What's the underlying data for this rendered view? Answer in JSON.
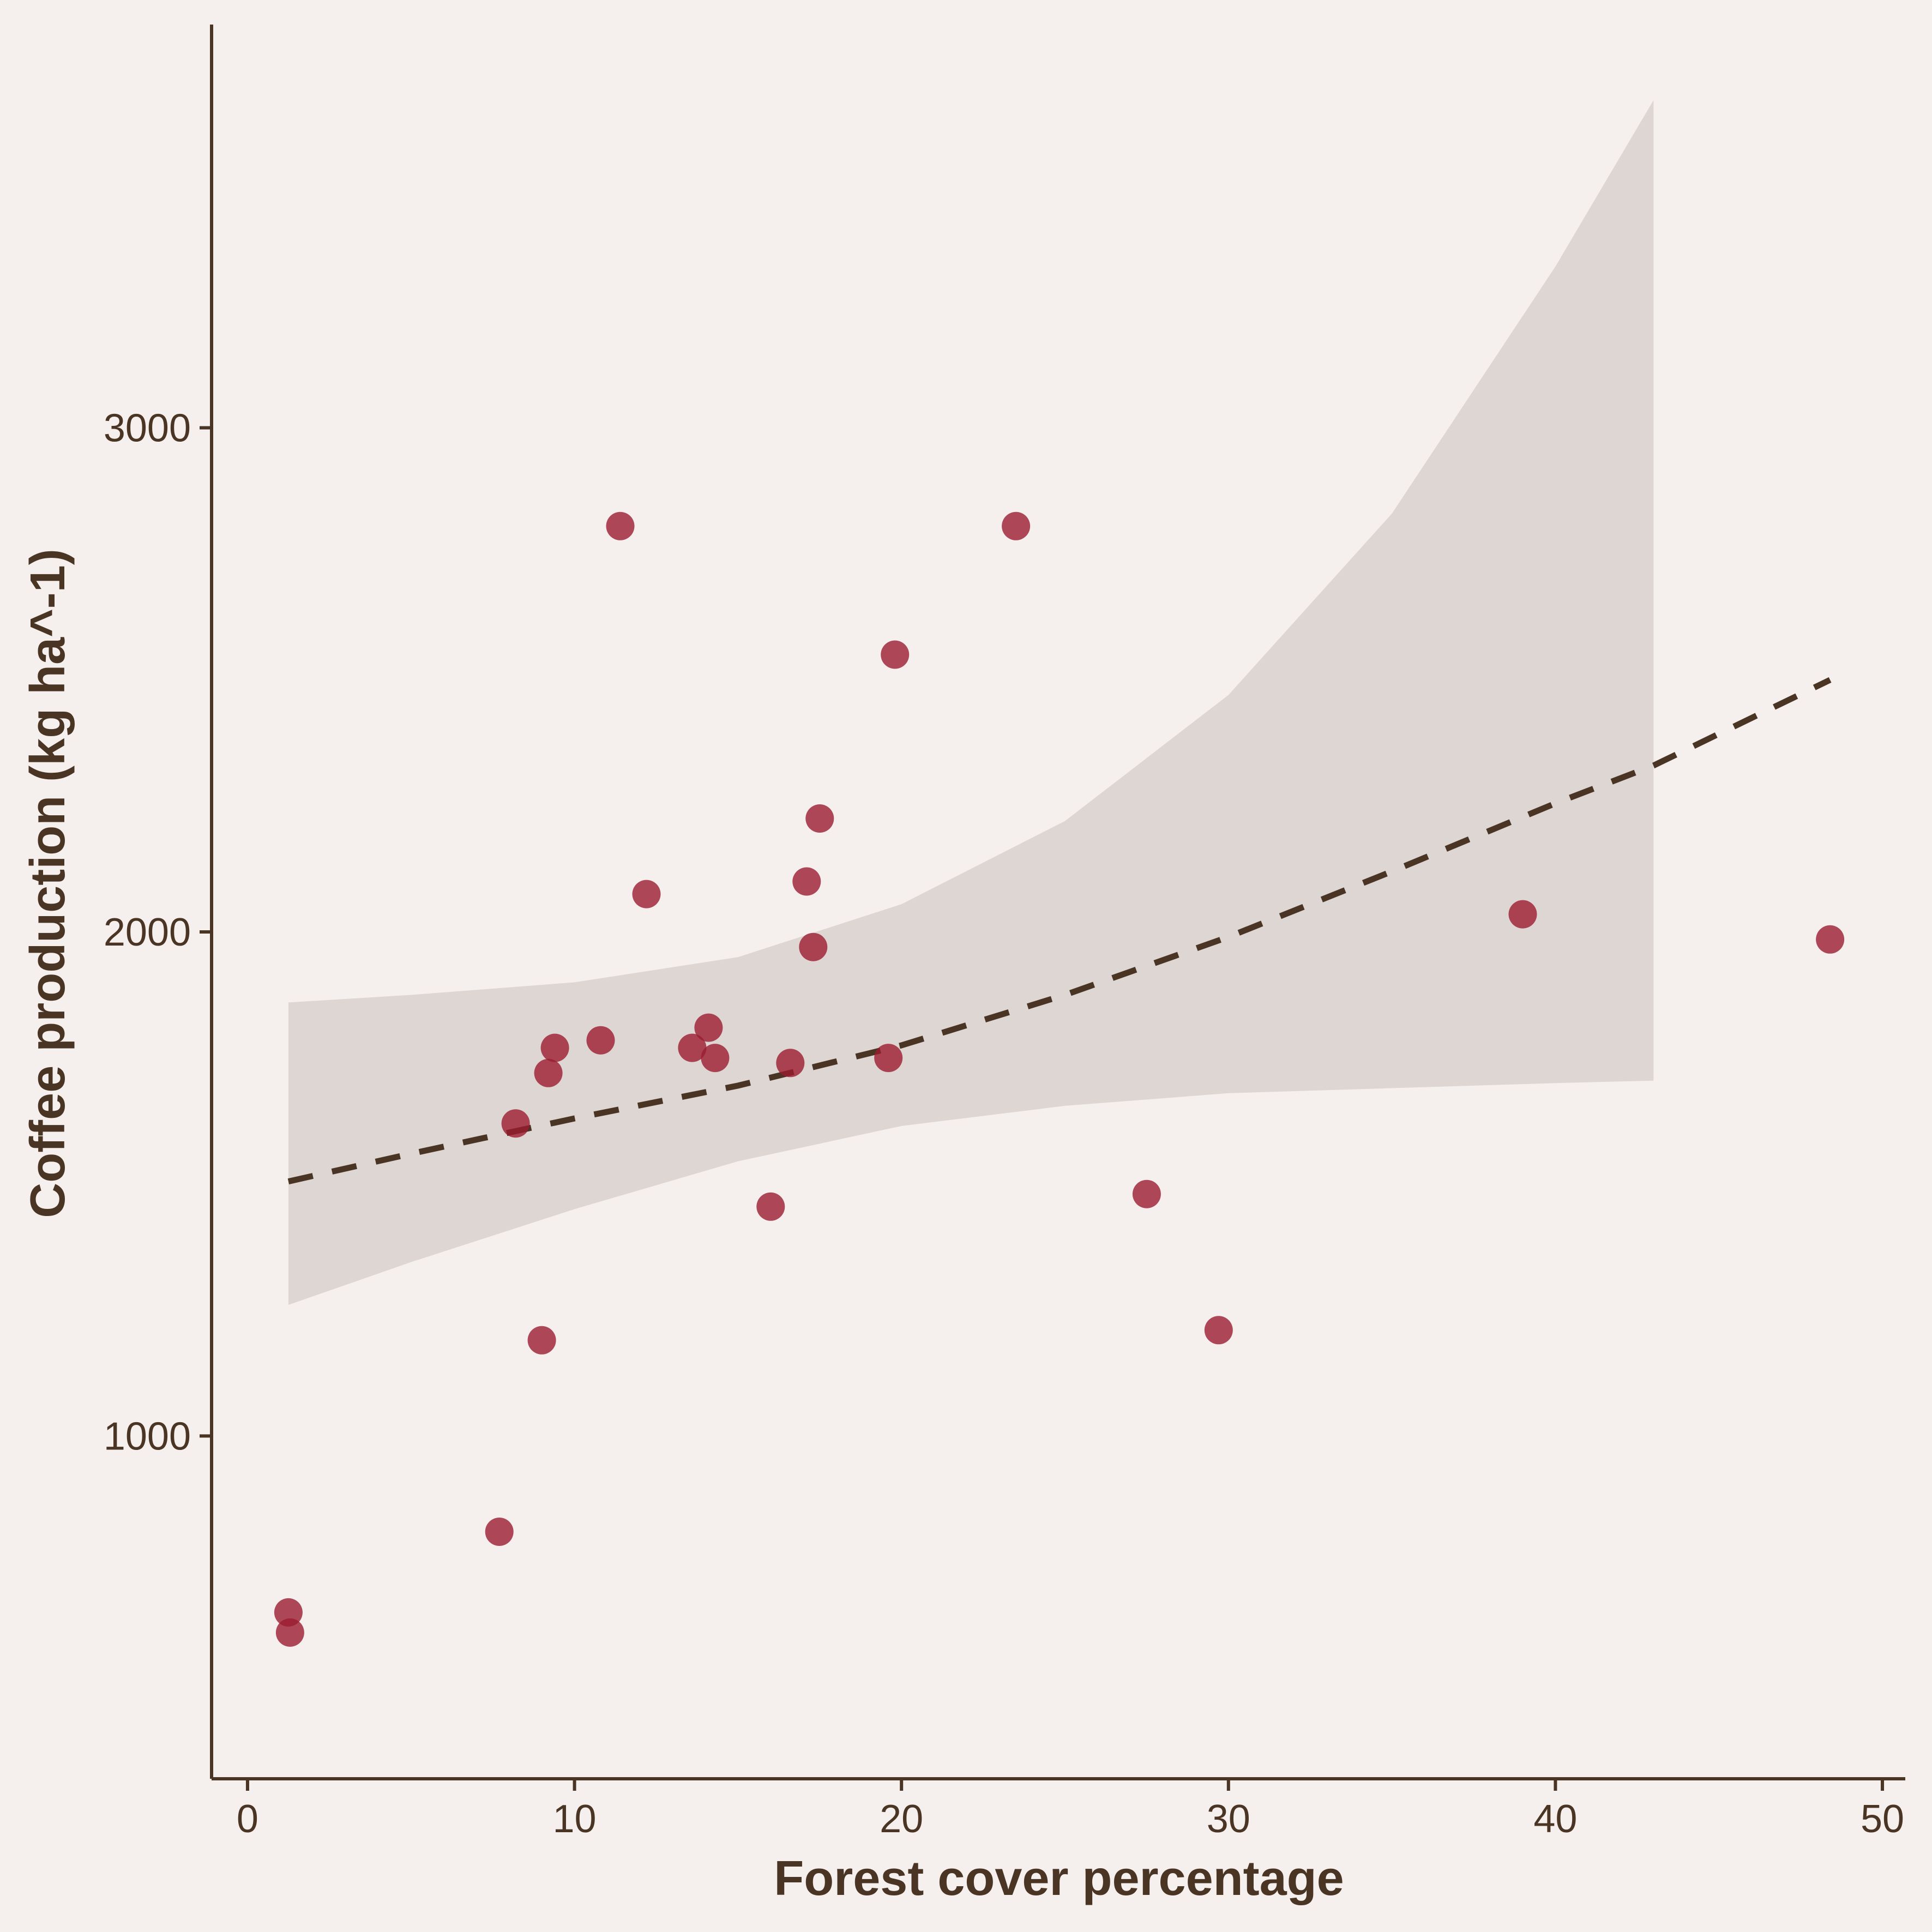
{
  "chart_data": {
    "type": "scatter",
    "title": "",
    "xlabel": "Forest cover percentage",
    "ylabel": "Coffee production (kg ha^-1)",
    "xlim": [
      -1.1,
      50.7
    ],
    "ylim": [
      320,
      3800
    ],
    "xticks": [
      0,
      10,
      20,
      30,
      40,
      50
    ],
    "yticks": [
      1000,
      2000,
      3000
    ],
    "points": [
      {
        "x": 1.25,
        "y": 650
      },
      {
        "x": 1.3,
        "y": 610
      },
      {
        "x": 7.7,
        "y": 810
      },
      {
        "x": 8.2,
        "y": 1620
      },
      {
        "x": 9.0,
        "y": 1190
      },
      {
        "x": 9.2,
        "y": 1720
      },
      {
        "x": 9.4,
        "y": 1770
      },
      {
        "x": 10.8,
        "y": 1785
      },
      {
        "x": 11.4,
        "y": 2805
      },
      {
        "x": 12.2,
        "y": 2075
      },
      {
        "x": 13.6,
        "y": 1770
      },
      {
        "x": 14.1,
        "y": 1810
      },
      {
        "x": 14.3,
        "y": 1750
      },
      {
        "x": 16.0,
        "y": 1455
      },
      {
        "x": 16.6,
        "y": 1740
      },
      {
        "x": 17.1,
        "y": 2100
      },
      {
        "x": 17.3,
        "y": 1970
      },
      {
        "x": 17.5,
        "y": 2225
      },
      {
        "x": 19.6,
        "y": 1750
      },
      {
        "x": 19.8,
        "y": 2550
      },
      {
        "x": 23.5,
        "y": 2805
      },
      {
        "x": 27.5,
        "y": 1480
      },
      {
        "x": 29.7,
        "y": 1210
      },
      {
        "x": 39.0,
        "y": 2035
      },
      {
        "x": 48.4,
        "y": 1985
      }
    ],
    "trend": {
      "style": "dashed",
      "color": "#4a3525",
      "x": [
        1.25,
        5,
        10,
        15,
        20,
        25,
        30,
        35,
        40,
        43,
        48.4
      ],
      "y": [
        1505,
        1560,
        1630,
        1695,
        1775,
        1875,
        1990,
        2120,
        2255,
        2330,
        2500
      ]
    },
    "confidence_band": {
      "color": "#ded6d3",
      "x": [
        1.25,
        5,
        10,
        15,
        20,
        25,
        30,
        35,
        40,
        43
      ],
      "upper": [
        1860,
        1875,
        1900,
        1950,
        2055,
        2220,
        2470,
        2830,
        3320,
        3650
      ],
      "lower": [
        1260,
        1345,
        1450,
        1545,
        1615,
        1655,
        1680,
        1690,
        1700,
        1705
      ]
    },
    "point_color": "#9b1b30",
    "axis_color": "#4a3525",
    "background": "#f5f0ed",
    "grid": false,
    "legend": "none"
  }
}
